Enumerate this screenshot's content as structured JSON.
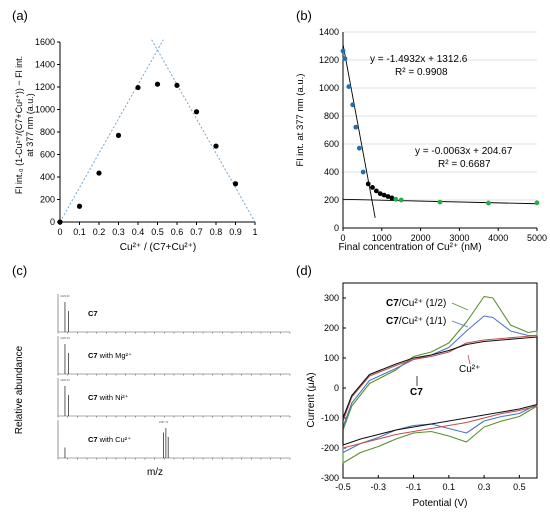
{
  "chart_data": [
    {
      "panel": "(a)",
      "type": "scatter",
      "xlabel": "Cu²⁺ / (C7+Cu²⁺)",
      "ylabel_lines": [
        "Fl int.₀ (1-Cu²⁺/(C7+Cu²⁺)) − Fl int.",
        "at 377 nm (a.u.)"
      ],
      "xlim": [
        0,
        1
      ],
      "ylim": [
        0,
        1600
      ],
      "xticks": [
        0,
        0.1,
        0.2,
        0.3,
        0.4,
        0.5,
        0.6,
        0.7,
        0.8,
        0.9,
        1
      ],
      "yticks": [
        0,
        200,
        400,
        600,
        800,
        1000,
        1200,
        1400,
        1600
      ],
      "points": [
        {
          "x": 0,
          "y": 0
        },
        {
          "x": 0.1,
          "y": 140
        },
        {
          "x": 0.2,
          "y": 435
        },
        {
          "x": 0.3,
          "y": 770
        },
        {
          "x": 0.4,
          "y": 1195
        },
        {
          "x": 0.5,
          "y": 1225
        },
        {
          "x": 0.6,
          "y": 1215
        },
        {
          "x": 0.7,
          "y": 980
        },
        {
          "x": 0.8,
          "y": 675
        },
        {
          "x": 0.9,
          "y": 340
        }
      ],
      "trendlines": [
        {
          "x": [
            0,
            0.53
          ],
          "y": [
            0,
            1620
          ]
        },
        {
          "x": [
            0.47,
            1.0
          ],
          "y": [
            1620,
            0
          ]
        }
      ],
      "colors": {
        "points": "#000000",
        "trend": "#6aa8d8"
      }
    },
    {
      "panel": "(b)",
      "type": "scatter",
      "xlabel": "Final concentration of Cu²⁺ (nM)",
      "ylabel": "Fl int. at 377 nm (a.u.)",
      "xlim": [
        0,
        5000
      ],
      "ylim": [
        0,
        1400
      ],
      "xticks": [
        0,
        1000,
        2000,
        3000,
        4000,
        5000
      ],
      "yticks": [
        0,
        200,
        400,
        600,
        800,
        1000,
        1200,
        1400
      ],
      "grid": true,
      "series": [
        {
          "color": "#1f6fb2",
          "points": [
            [
              0,
              1265
            ],
            [
              50,
              1210
            ],
            [
              150,
              1010
            ],
            [
              250,
              880
            ],
            [
              330,
              720
            ],
            [
              420,
              570
            ],
            [
              520,
              400
            ]
          ]
        },
        {
          "color": "#000000",
          "points": [
            [
              650,
              315
            ],
            [
              760,
              290
            ],
            [
              860,
              265
            ],
            [
              960,
              245
            ],
            [
              1060,
              235
            ],
            [
              1160,
              225
            ],
            [
              1260,
              215
            ]
          ]
        },
        {
          "color": "#22b04a",
          "points": [
            [
              1360,
              205
            ],
            [
              1500,
              200
            ],
            [
              2500,
              185
            ],
            [
              3750,
              178
            ],
            [
              5000,
              180
            ]
          ]
        }
      ],
      "fits": [
        {
          "equation": "y = -1.4932x + 1312.6",
          "r2": "R² = 0.9908",
          "x": [
            0,
            830
          ],
          "y": [
            1312.6,
            73
          ]
        },
        {
          "equation": "y = -0.0063x + 204.67",
          "r2": "R² = 0.6687",
          "x": [
            0,
            5000
          ],
          "y": [
            204.67,
            173.2
          ]
        }
      ]
    },
    {
      "panel": "(c)",
      "type": "bar",
      "ylabel": "Relative abundance",
      "xlabel": "m/z",
      "spectra": [
        {
          "label_bold": "C7",
          "label_rest": "",
          "peaks": [
            [
              0.03,
              1.0
            ],
            [
              0.045,
              0.7
            ]
          ],
          "annotation": "1026.00"
        },
        {
          "label_bold": "C7",
          "label_rest": " with Mg²⁺",
          "peaks": [
            [
              0.03,
              1.0
            ],
            [
              0.045,
              0.7
            ]
          ],
          "annotation": "1026.00"
        },
        {
          "label_bold": "C7",
          "label_rest": " with Ni²⁺",
          "peaks": [
            [
              0.03,
              1.0
            ],
            [
              0.045,
              0.7
            ]
          ],
          "annotation": "1026.00"
        },
        {
          "label_bold": "C7",
          "label_rest": " with Cu²⁺",
          "peaks": [
            [
              0.03,
              0.35
            ],
            [
              0.455,
              0.85
            ],
            [
              0.465,
              1.0
            ],
            [
              0.475,
              0.7
            ]
          ],
          "annotation": "1087.70"
        }
      ]
    },
    {
      "panel": "(d)",
      "type": "line",
      "xlabel": "Potential (V)",
      "ylabel": "Current (μA)",
      "xlim": [
        -0.5,
        0.6
      ],
      "ylim": [
        -300,
        350
      ],
      "xticks": [
        -0.5,
        -0.3,
        -0.1,
        0.1,
        0.3,
        0.5
      ],
      "yticks": [
        -300,
        -200,
        -100,
        0,
        100,
        200,
        300
      ],
      "series": [
        {
          "label_bold": "C7",
          "label_rest": "/Cu²⁺ (1/2)",
          "color": "#5a8f2e",
          "upper": [
            [
              -0.5,
              -140
            ],
            [
              -0.45,
              -60
            ],
            [
              -0.35,
              15
            ],
            [
              -0.2,
              60
            ],
            [
              -0.1,
              105
            ],
            [
              0.0,
              120
            ],
            [
              0.1,
              150
            ],
            [
              0.2,
              220
            ],
            [
              0.3,
              305
            ],
            [
              0.35,
              300
            ],
            [
              0.45,
              210
            ],
            [
              0.55,
              185
            ],
            [
              0.6,
              190
            ]
          ],
          "lower": [
            [
              0.6,
              -60
            ],
            [
              0.5,
              -95
            ],
            [
              0.4,
              -110
            ],
            [
              0.3,
              -130
            ],
            [
              0.2,
              -180
            ],
            [
              0.1,
              -160
            ],
            [
              0.0,
              -145
            ],
            [
              -0.1,
              -150
            ],
            [
              -0.2,
              -170
            ],
            [
              -0.3,
              -195
            ],
            [
              -0.4,
              -215
            ],
            [
              -0.5,
              -250
            ]
          ]
        },
        {
          "label_bold": "C7",
          "label_rest": "/Cu²⁺ (1/1)",
          "color": "#4a78c2",
          "upper": [
            [
              -0.5,
              -130
            ],
            [
              -0.45,
              -50
            ],
            [
              -0.35,
              25
            ],
            [
              -0.2,
              65
            ],
            [
              -0.1,
              95
            ],
            [
              0.0,
              110
            ],
            [
              0.1,
              135
            ],
            [
              0.2,
              190
            ],
            [
              0.3,
              240
            ],
            [
              0.35,
              235
            ],
            [
              0.45,
              190
            ],
            [
              0.55,
              175
            ],
            [
              0.6,
              175
            ]
          ],
          "lower": [
            [
              0.6,
              -55
            ],
            [
              0.5,
              -85
            ],
            [
              0.4,
              -95
            ],
            [
              0.3,
              -110
            ],
            [
              0.2,
              -150
            ],
            [
              0.1,
              -135
            ],
            [
              0.0,
              -120
            ],
            [
              -0.1,
              -125
            ],
            [
              -0.2,
              -140
            ],
            [
              -0.3,
              -165
            ],
            [
              -0.4,
              -185
            ],
            [
              -0.5,
              -215
            ]
          ]
        },
        {
          "label_bold": "",
          "label_rest": "Cu²⁺",
          "color": "#c0504d",
          "upper": [
            [
              -0.5,
              -110
            ],
            [
              -0.45,
              -30
            ],
            [
              -0.35,
              40
            ],
            [
              -0.2,
              75
            ],
            [
              -0.1,
              95
            ],
            [
              0.0,
              105
            ],
            [
              0.1,
              120
            ],
            [
              0.2,
              150
            ],
            [
              0.3,
              160
            ],
            [
              0.4,
              165
            ],
            [
              0.5,
              170
            ],
            [
              0.6,
              175
            ]
          ],
          "lower": [
            [
              0.6,
              -60
            ],
            [
              0.5,
              -75
            ],
            [
              0.4,
              -85
            ],
            [
              0.3,
              -100
            ],
            [
              0.2,
              -115
            ],
            [
              0.1,
              -125
            ],
            [
              0.0,
              -135
            ],
            [
              -0.1,
              -145
            ],
            [
              -0.2,
              -155
            ],
            [
              -0.3,
              -170
            ],
            [
              -0.4,
              -185
            ],
            [
              -0.5,
              -200
            ]
          ]
        },
        {
          "label_bold": "C7",
          "label_rest": "",
          "color": "#111111",
          "upper": [
            [
              -0.5,
              -100
            ],
            [
              -0.45,
              -25
            ],
            [
              -0.35,
              45
            ],
            [
              -0.2,
              80
            ],
            [
              -0.1,
              100
            ],
            [
              0.0,
              110
            ],
            [
              0.1,
              125
            ],
            [
              0.2,
              145
            ],
            [
              0.3,
              155
            ],
            [
              0.4,
              160
            ],
            [
              0.5,
              165
            ],
            [
              0.6,
              170
            ]
          ],
          "lower": [
            [
              0.6,
              -55
            ],
            [
              0.5,
              -70
            ],
            [
              0.4,
              -80
            ],
            [
              0.3,
              -90
            ],
            [
              0.2,
              -100
            ],
            [
              0.1,
              -110
            ],
            [
              0.0,
              -120
            ],
            [
              -0.1,
              -130
            ],
            [
              -0.2,
              -140
            ],
            [
              -0.3,
              -155
            ],
            [
              -0.4,
              -170
            ],
            [
              -0.5,
              -190
            ]
          ]
        }
      ]
    }
  ]
}
